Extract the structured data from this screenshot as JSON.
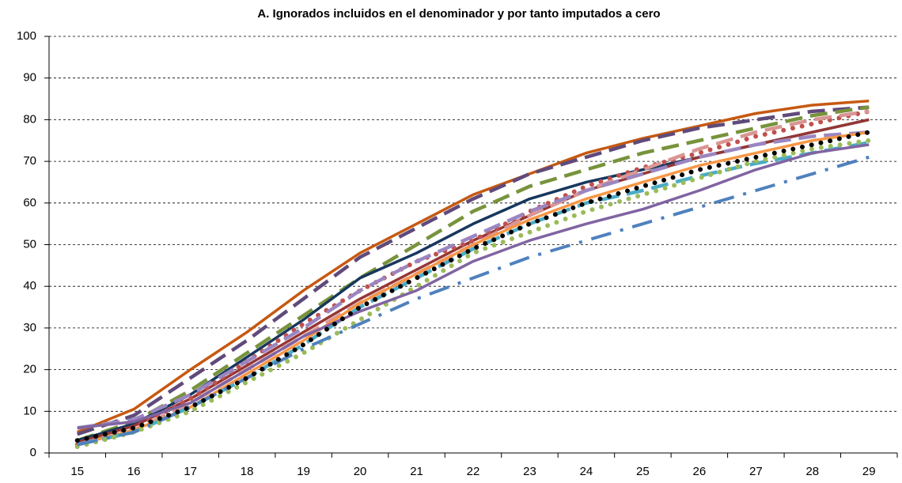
{
  "chart_data": {
    "type": "line",
    "title": "A. Ignorados incluidos en el denominador y por tanto imputados a cero",
    "categories": [
      "15",
      "16",
      "17",
      "18",
      "19",
      "20",
      "21",
      "22",
      "23",
      "24",
      "25",
      "26",
      "27",
      "28",
      "29"
    ],
    "ylim": [
      0,
      100
    ],
    "yticks": [
      0,
      10,
      20,
      30,
      40,
      50,
      60,
      70,
      80,
      90,
      100
    ],
    "grid": true,
    "series": [
      {
        "color": "#c65911",
        "style": "solid",
        "values": [
          5,
          10.5,
          20,
          29,
          39,
          48,
          55,
          62,
          67,
          72,
          75.5,
          78.5,
          81.5,
          83.5,
          84.5
        ]
      },
      {
        "color": "#604a7b",
        "style": "dashed",
        "values": [
          4.5,
          9,
          18,
          27,
          37,
          47,
          54,
          61,
          67,
          71,
          75,
          78,
          80,
          82,
          83
        ]
      },
      {
        "color": "#77933c",
        "style": "dashed",
        "values": [
          3,
          7.5,
          15,
          24,
          33,
          42,
          50,
          58,
          64,
          68,
          72,
          75,
          78,
          81,
          83
        ]
      },
      {
        "color": "#17375e",
        "style": "solid",
        "values": [
          3,
          7,
          14,
          23,
          32,
          42,
          48,
          55,
          61,
          65,
          68,
          71,
          74,
          77,
          80
        ]
      },
      {
        "color": "#953735",
        "style": "solid",
        "values": [
          2.5,
          6.5,
          13,
          21,
          29,
          37,
          44,
          51,
          57,
          63,
          67,
          71,
          74,
          77,
          80
        ]
      },
      {
        "color": "#c0504d",
        "style": "dotted",
        "values": [
          2,
          6,
          13,
          22,
          31,
          39,
          46,
          51,
          58,
          64,
          68.5,
          72,
          76,
          79,
          82
        ]
      },
      {
        "color": "#d99694",
        "style": "dashed",
        "values": [
          2,
          5.5,
          12,
          20,
          28,
          36,
          43,
          50,
          57,
          63,
          68,
          73,
          77,
          80,
          82
        ]
      },
      {
        "color": "#9b86c1",
        "style": "dashed",
        "values": [
          6,
          8,
          14,
          22,
          30,
          39,
          46,
          52,
          58,
          63,
          67,
          71,
          74,
          76,
          77
        ]
      },
      {
        "color": "#f79646",
        "style": "solid",
        "values": [
          2,
          5.5,
          11,
          19,
          27,
          36,
          43,
          50,
          56,
          61,
          65,
          69,
          72,
          75,
          77
        ]
      },
      {
        "color": "#4bacc6",
        "style": "dashed",
        "values": [
          2,
          5,
          11,
          18,
          26,
          35,
          42,
          49,
          55,
          60,
          63,
          66.5,
          69.5,
          72,
          74.5
        ]
      },
      {
        "color": "#9bbb59",
        "style": "dotted",
        "values": [
          1.5,
          5,
          10,
          17,
          24,
          32,
          40,
          48,
          53,
          58,
          62,
          66,
          70,
          73,
          75
        ]
      },
      {
        "color": "#8064a2",
        "style": "solid",
        "values": [
          6,
          7.5,
          12,
          20,
          28,
          34,
          39,
          46,
          51,
          55,
          58.5,
          63,
          68,
          72,
          74
        ]
      },
      {
        "color": "#4f81bd",
        "style": "dashdot",
        "values": [
          2,
          5,
          11,
          18,
          25,
          31,
          37,
          42,
          47,
          51,
          55,
          59,
          63,
          67,
          71
        ]
      },
      {
        "color": "#000000",
        "style": "dotted",
        "values": [
          3,
          6,
          11,
          18,
          26,
          35,
          42,
          49,
          55,
          60,
          64,
          68,
          71,
          74,
          77
        ]
      }
    ]
  }
}
